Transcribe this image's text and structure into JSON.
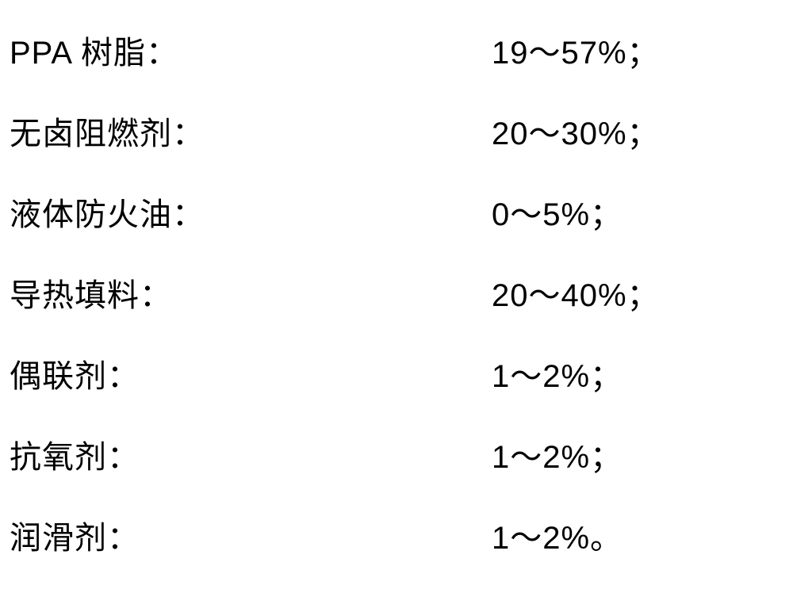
{
  "composition": {
    "items": [
      {
        "label": "PPA 树脂：",
        "value": "19～57%；"
      },
      {
        "label": "无卤阻燃剂：",
        "value": "20～30%；"
      },
      {
        "label": "液体防火油：",
        "value": "0～5%；"
      },
      {
        "label": "导热填料：",
        "value": "20～40%；"
      },
      {
        "label": "偶联剂：",
        "value": "1～2%；"
      },
      {
        "label": "抗氧剂：",
        "value": "1～2%；"
      },
      {
        "label": "润滑剂：",
        "value": "1～2%。"
      }
    ],
    "text_color": "#000000",
    "background_color": "#ffffff",
    "fontsize_pt": 30,
    "font_family": "Arial / Heiti"
  }
}
